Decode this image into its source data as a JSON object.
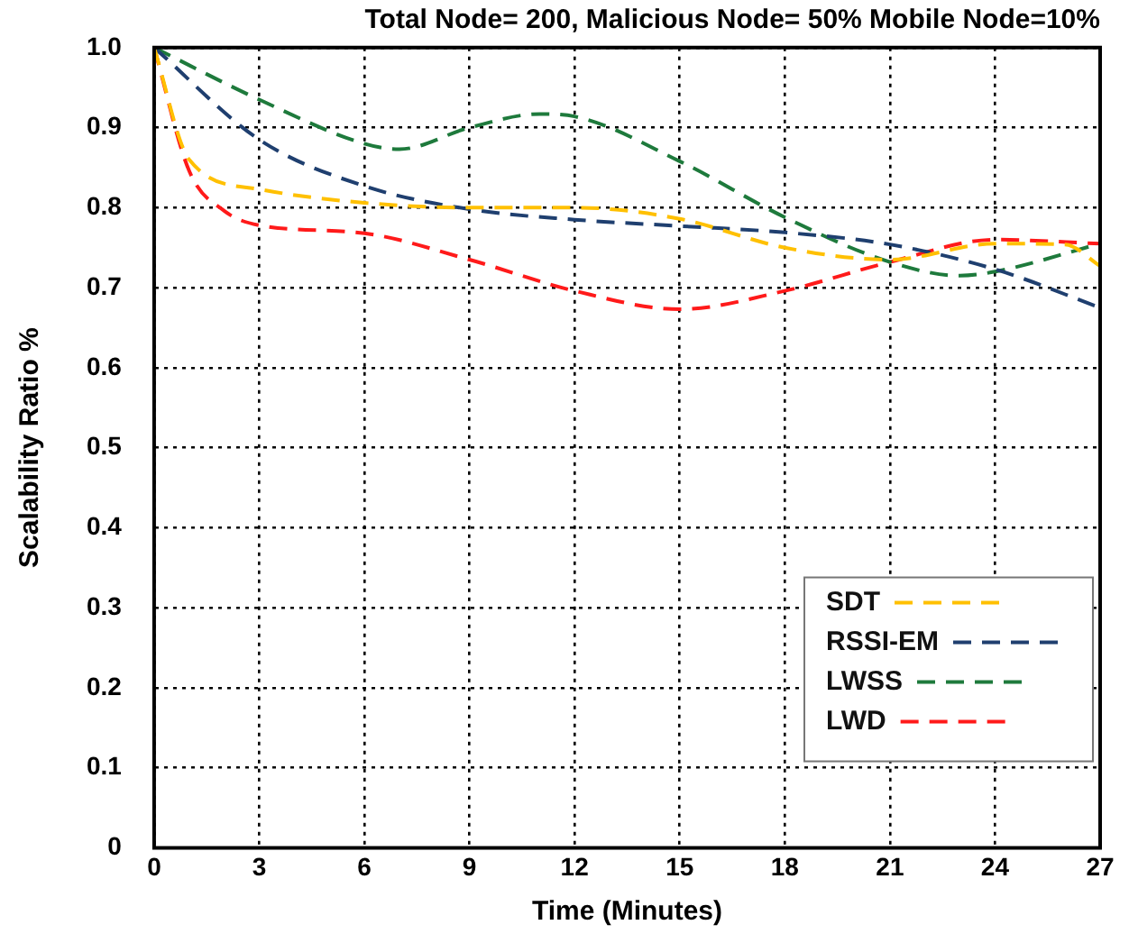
{
  "chart_data": {
    "type": "line",
    "title": "Total Node= 200, Malicious Node= 50% Mobile Node=10%",
    "xlabel": "Time (Minutes)",
    "ylabel": "Scalability Ratio %",
    "xlim": [
      0,
      27
    ],
    "xticks": [
      0,
      3,
      6,
      9,
      12,
      15,
      18,
      21,
      24,
      27
    ],
    "ylim": [
      0,
      1
    ],
    "yticks": [
      0,
      0.1,
      0.2,
      0.3,
      0.4,
      0.5,
      0.6,
      0.7,
      0.8,
      0.9,
      {
        "value": 1,
        "label": "1.0"
      }
    ],
    "grid": true,
    "legend": "bottom right",
    "line_style": "dashed",
    "marker": "none",
    "series": [
      {
        "name": "SDT",
        "color": "#ffc000",
        "x": [
          0,
          1,
          3,
          6,
          9,
          12,
          15,
          18,
          21,
          24,
          26,
          27
        ],
        "values": [
          1.0,
          0.86,
          0.823,
          0.806,
          0.8,
          0.8,
          0.786,
          0.75,
          0.735,
          0.755,
          0.754,
          0.727
        ]
      },
      {
        "name": "RSSI-EM",
        "color": "#1f3f6f",
        "x": [
          0,
          3,
          6,
          9,
          12,
          15,
          18,
          21,
          24,
          27
        ],
        "values": [
          1.0,
          0.885,
          0.827,
          0.798,
          0.785,
          0.777,
          0.769,
          0.754,
          0.723,
          0.675
        ]
      },
      {
        "name": "LWSS",
        "color": "#1e7a3c",
        "x": [
          0,
          3,
          6,
          7,
          9,
          11,
          12,
          15,
          18,
          21,
          23,
          24,
          27
        ],
        "values": [
          1.0,
          0.935,
          0.88,
          0.873,
          0.9,
          0.917,
          0.914,
          0.858,
          0.788,
          0.732,
          0.715,
          0.72,
          0.755
        ]
      },
      {
        "name": "LWD",
        "color": "#ff1a1a",
        "x": [
          0,
          1,
          2,
          3,
          6,
          9,
          12,
          15,
          18,
          21,
          24,
          27
        ],
        "values": [
          1.0,
          0.846,
          0.796,
          0.778,
          0.768,
          0.735,
          0.696,
          0.673,
          0.696,
          0.732,
          0.76,
          0.755
        ]
      }
    ]
  }
}
